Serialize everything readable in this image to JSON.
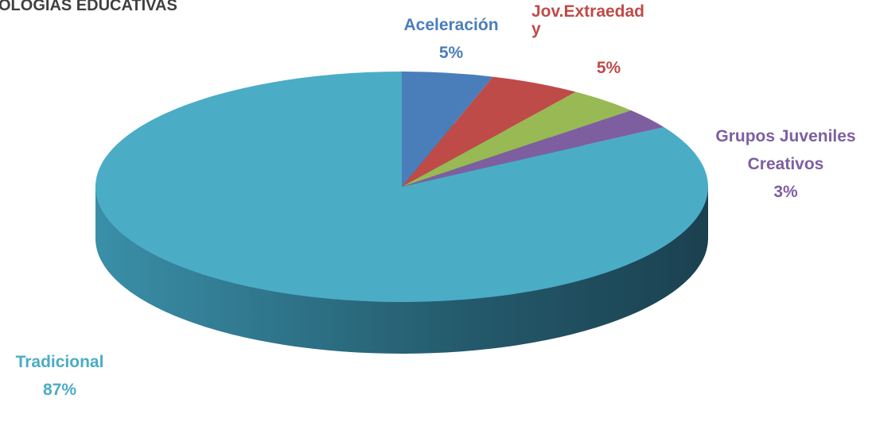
{
  "chart_data": {
    "type": "pie",
    "title": "OLOGIAS EDUCATIVAS",
    "categories": [
      "Aceleración",
      "Jov.Extraedad y",
      null,
      "Grupos Juveniles Creativos",
      "Tradicional"
    ],
    "values": [
      5,
      5,
      4,
      3,
      87
    ],
    "value_labels": [
      "5%",
      "5%",
      null,
      "3%",
      "87%"
    ],
    "colors": [
      "#4a7ebb",
      "#be4b48",
      "#98b954",
      "#7d5fa0",
      "#4bacc6"
    ]
  }
}
